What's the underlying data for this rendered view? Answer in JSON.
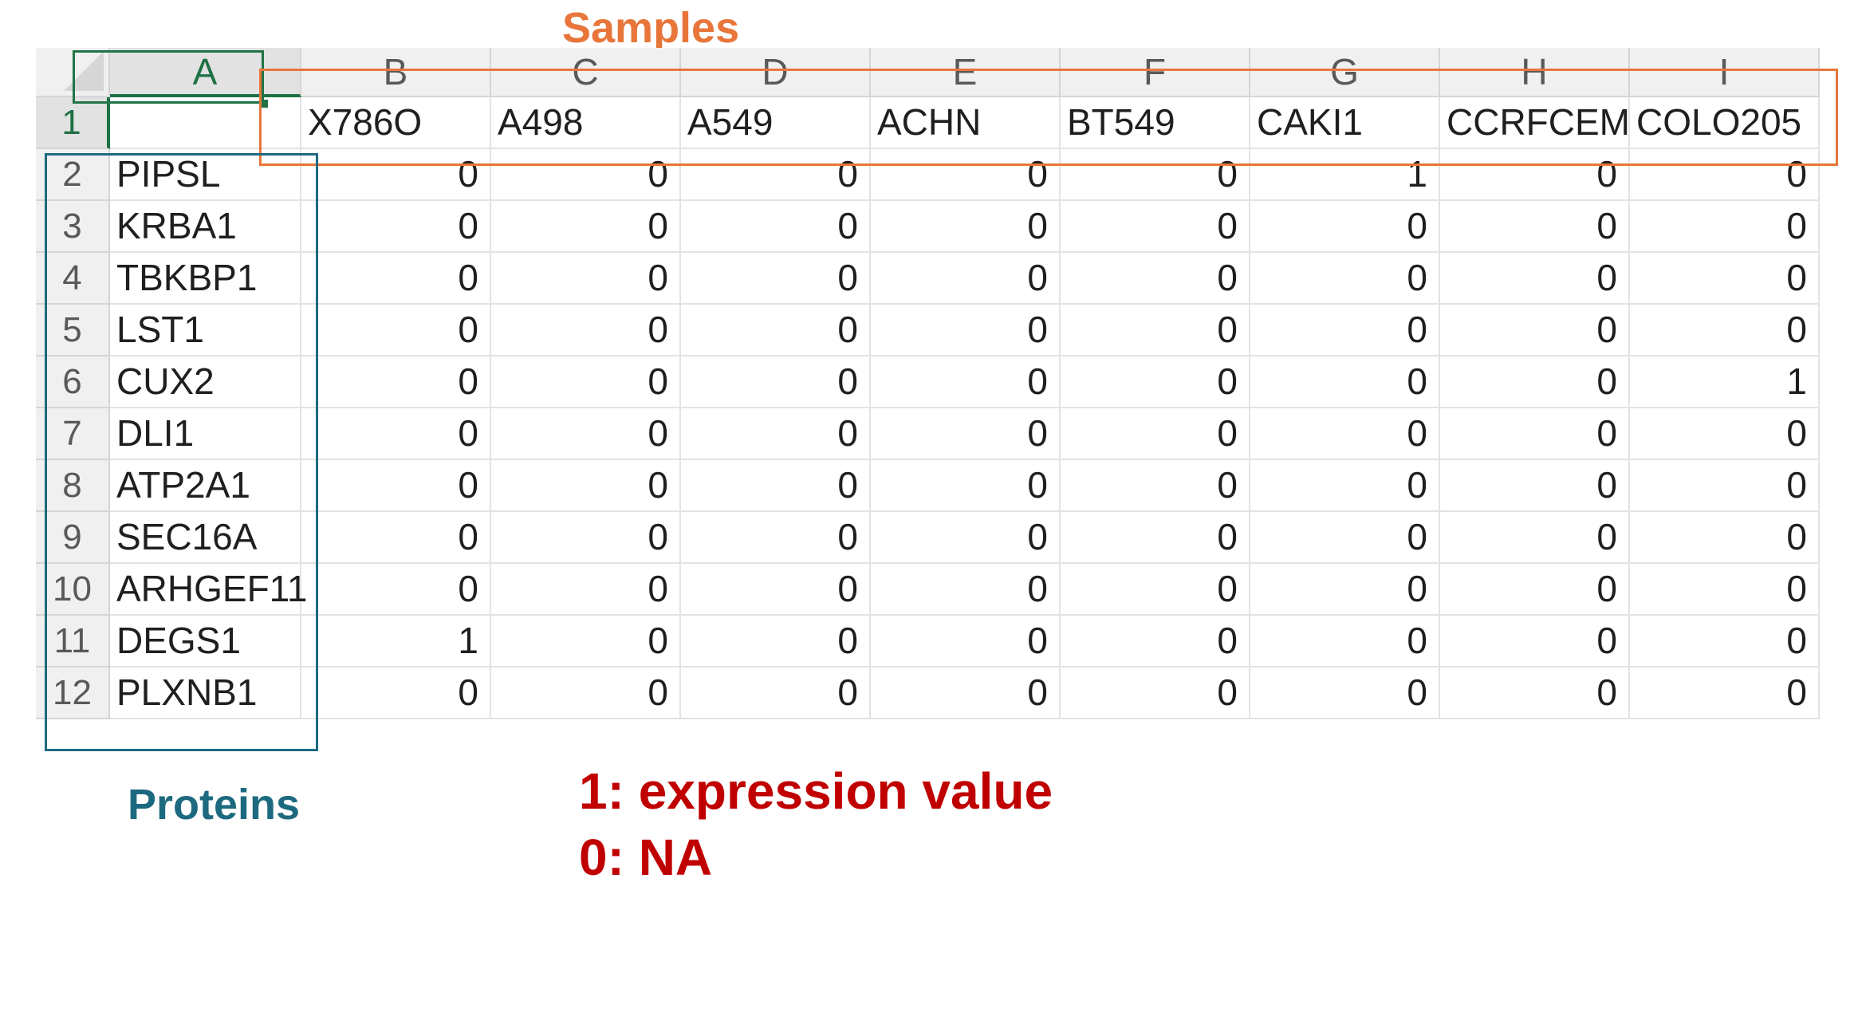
{
  "annotations": {
    "samples_label": "Samples",
    "proteins_label": "Proteins",
    "legend": [
      "1: expression value",
      "0: NA"
    ]
  },
  "colors": {
    "samples_accent": "#e8763a",
    "proteins_accent": "#1d6a80",
    "legend_text": "#c00000",
    "active_cell_border": "#217346"
  },
  "sheet": {
    "column_headers": [
      "A",
      "B",
      "C",
      "D",
      "E",
      "F",
      "G",
      "H",
      "I"
    ],
    "selected_column": "A",
    "selected_row": "1",
    "header_row": {
      "row_number": "1",
      "cells": [
        "",
        "X786O",
        "A498",
        "A549",
        "ACHN",
        "BT549",
        "CAKI1",
        "CCRFCEM",
        "COLO205"
      ]
    },
    "rows": [
      {
        "row_number": "2",
        "protein": "PIPSL",
        "values": [
          "0",
          "0",
          "0",
          "0",
          "0",
          "1",
          "0",
          "0"
        ]
      },
      {
        "row_number": "3",
        "protein": "KRBA1",
        "values": [
          "0",
          "0",
          "0",
          "0",
          "0",
          "0",
          "0",
          "0"
        ]
      },
      {
        "row_number": "4",
        "protein": "TBKBP1",
        "values": [
          "0",
          "0",
          "0",
          "0",
          "0",
          "0",
          "0",
          "0"
        ]
      },
      {
        "row_number": "5",
        "protein": "LST1",
        "values": [
          "0",
          "0",
          "0",
          "0",
          "0",
          "0",
          "0",
          "0"
        ]
      },
      {
        "row_number": "6",
        "protein": "CUX2",
        "values": [
          "0",
          "0",
          "0",
          "0",
          "0",
          "0",
          "0",
          "1"
        ]
      },
      {
        "row_number": "7",
        "protein": "DLI1",
        "values": [
          "0",
          "0",
          "0",
          "0",
          "0",
          "0",
          "0",
          "0"
        ]
      },
      {
        "row_number": "8",
        "protein": "ATP2A1",
        "values": [
          "0",
          "0",
          "0",
          "0",
          "0",
          "0",
          "0",
          "0"
        ]
      },
      {
        "row_number": "9",
        "protein": "SEC16A",
        "values": [
          "0",
          "0",
          "0",
          "0",
          "0",
          "0",
          "0",
          "0"
        ]
      },
      {
        "row_number": "10",
        "protein": "ARHGEF11",
        "values": [
          "0",
          "0",
          "0",
          "0",
          "0",
          "0",
          "0",
          "0"
        ]
      },
      {
        "row_number": "11",
        "protein": "DEGS1",
        "values": [
          "1",
          "0",
          "0",
          "0",
          "0",
          "0",
          "0",
          "0"
        ]
      },
      {
        "row_number": "12",
        "protein": "PLXNB1",
        "values": [
          "0",
          "0",
          "0",
          "0",
          "0",
          "0",
          "0",
          "0"
        ]
      }
    ]
  }
}
